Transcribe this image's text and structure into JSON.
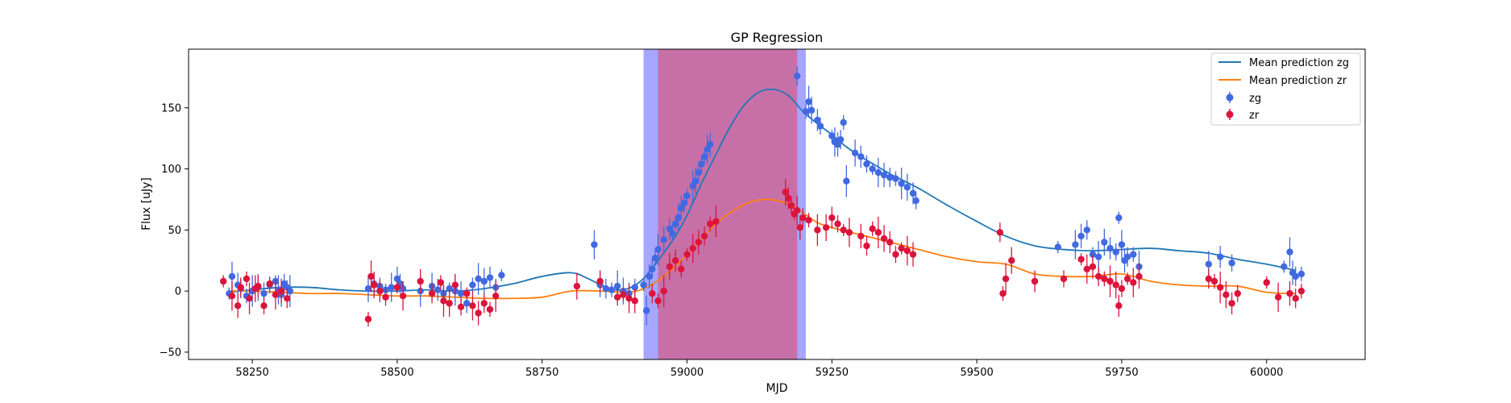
{
  "chart_data": {
    "type": "scatter",
    "title": "GP Regression",
    "xlabel": "MJD",
    "ylabel": "Flux [uJy]",
    "xlim": [
      58140,
      60170
    ],
    "ylim": [
      -56,
      198
    ],
    "xticks": [
      58250,
      58500,
      58750,
      59000,
      59250,
      59500,
      59750,
      60000
    ],
    "yticks": [
      -50,
      0,
      50,
      100,
      150
    ],
    "legend_position": "top-right",
    "shaded_regions": [
      {
        "x_start": 58925,
        "x_end": 59205,
        "color": "#8080ff"
      },
      {
        "x_start": 58950,
        "x_end": 59190,
        "color": "#cc6699"
      }
    ],
    "lines": [
      {
        "name": "Mean prediction zg",
        "color": "#1f77b4",
        "x": [
          58210,
          58250,
          58300,
          58350,
          58400,
          58450,
          58500,
          58550,
          58600,
          58650,
          58700,
          58750,
          58800,
          58830,
          58860,
          58890,
          58920,
          58950,
          58980,
          59000,
          59025,
          59050,
          59075,
          59100,
          59125,
          59150,
          59175,
          59200,
          59225,
          59250,
          59275,
          59300,
          59325,
          59350,
          59375,
          59400,
          59450,
          59500,
          59550,
          59600,
          59650,
          59700,
          59750,
          59800,
          59850,
          59900,
          59950,
          60000,
          60050
        ],
        "y": [
          -1,
          1,
          3,
          3,
          1,
          0,
          0,
          1,
          0,
          2,
          6,
          12,
          15,
          10,
          3,
          1,
          8,
          25,
          45,
          62,
          88,
          112,
          135,
          153,
          163,
          165,
          160,
          147,
          137,
          128,
          118,
          110,
          103,
          96,
          90,
          84,
          70,
          57,
          45,
          37,
          34,
          33,
          34,
          35,
          33,
          31,
          26,
          22,
          17
        ]
      },
      {
        "name": "Mean prediction zr",
        "color": "#ff7f0e",
        "x": [
          58210,
          58250,
          58300,
          58350,
          58400,
          58450,
          58500,
          58550,
          58600,
          58650,
          58700,
          58750,
          58800,
          58850,
          58900,
          58930,
          58960,
          58990,
          59020,
          59050,
          59080,
          59110,
          59140,
          59170,
          59200,
          59225,
          59250,
          59275,
          59300,
          59350,
          59400,
          59450,
          59500,
          59550,
          59600,
          59650,
          59700,
          59750,
          59800,
          59850,
          59900,
          59950,
          60000,
          60050
        ],
        "y": [
          0,
          0,
          -1,
          -2,
          -2,
          -3,
          -4,
          -4,
          -5,
          -6,
          -6,
          -5,
          0,
          0,
          -1,
          3,
          12,
          25,
          40,
          55,
          66,
          73,
          75,
          72,
          64,
          56,
          52,
          49,
          46,
          40,
          34,
          28,
          24,
          22,
          14,
          12,
          12,
          14,
          8,
          5,
          4,
          4,
          -1,
          -2
        ]
      }
    ],
    "series": [
      {
        "name": "zg",
        "color": "#4169e1",
        "points": [
          [
            58210,
            -2
          ],
          [
            58215,
            12
          ],
          [
            58225,
            5
          ],
          [
            58230,
            2
          ],
          [
            58240,
            -4
          ],
          [
            58250,
            0
          ],
          [
            58260,
            3
          ],
          [
            58270,
            -2
          ],
          [
            58280,
            5
          ],
          [
            58290,
            8
          ],
          [
            58295,
            1
          ],
          [
            58300,
            -3
          ],
          [
            58305,
            6
          ],
          [
            58310,
            3
          ],
          [
            58315,
            0
          ],
          [
            58450,
            2
          ],
          [
            58460,
            6
          ],
          [
            58470,
            4
          ],
          [
            58480,
            1
          ],
          [
            58490,
            3
          ],
          [
            58500,
            10
          ],
          [
            58505,
            6
          ],
          [
            58510,
            2
          ],
          [
            58540,
            0
          ],
          [
            58560,
            4
          ],
          [
            58570,
            1
          ],
          [
            58580,
            -2
          ],
          [
            58590,
            2
          ],
          [
            58600,
            0
          ],
          [
            58610,
            -2
          ],
          [
            58620,
            -10
          ],
          [
            58630,
            5
          ],
          [
            58640,
            10
          ],
          [
            58650,
            8
          ],
          [
            58660,
            11
          ],
          [
            58670,
            3
          ],
          [
            58680,
            13
          ],
          [
            58840,
            38
          ],
          [
            58850,
            5
          ],
          [
            58860,
            2
          ],
          [
            58870,
            1
          ],
          [
            58880,
            4
          ],
          [
            58890,
            0
          ],
          [
            58900,
            -2
          ],
          [
            58910,
            3
          ],
          [
            58925,
            5
          ],
          [
            58930,
            -16
          ],
          [
            58935,
            12
          ],
          [
            58940,
            18
          ],
          [
            58945,
            27
          ],
          [
            58950,
            34
          ],
          [
            58960,
            42
          ],
          [
            58970,
            51
          ],
          [
            58975,
            47
          ],
          [
            58980,
            55
          ],
          [
            58985,
            60
          ],
          [
            58990,
            68
          ],
          [
            58995,
            72
          ],
          [
            59000,
            78
          ],
          [
            59010,
            86
          ],
          [
            59015,
            90
          ],
          [
            59020,
            97
          ],
          [
            59025,
            104
          ],
          [
            59030,
            110
          ],
          [
            59035,
            116
          ],
          [
            59040,
            120
          ],
          [
            59190,
            176
          ],
          [
            59205,
            147
          ],
          [
            59210,
            155
          ],
          [
            59215,
            148
          ],
          [
            59225,
            140
          ],
          [
            59230,
            135
          ],
          [
            59250,
            127
          ],
          [
            59255,
            122
          ],
          [
            59260,
            120
          ],
          [
            59265,
            124
          ],
          [
            59270,
            138
          ],
          [
            59275,
            90
          ],
          [
            59290,
            113
          ],
          [
            59300,
            110
          ],
          [
            59310,
            104
          ],
          [
            59320,
            100
          ],
          [
            59330,
            97
          ],
          [
            59340,
            95
          ],
          [
            59350,
            93
          ],
          [
            59360,
            92
          ],
          [
            59370,
            88
          ],
          [
            59380,
            85
          ],
          [
            59390,
            80
          ],
          [
            59395,
            74
          ],
          [
            59640,
            36
          ],
          [
            59670,
            38
          ],
          [
            59680,
            45
          ],
          [
            59690,
            50
          ],
          [
            59700,
            30
          ],
          [
            59710,
            28
          ],
          [
            59720,
            40
          ],
          [
            59730,
            35
          ],
          [
            59740,
            32
          ],
          [
            59745,
            60
          ],
          [
            59750,
            38
          ],
          [
            59755,
            25
          ],
          [
            59760,
            28
          ],
          [
            59770,
            30
          ],
          [
            59780,
            20
          ],
          [
            59900,
            22
          ],
          [
            59920,
            28
          ],
          [
            59940,
            23
          ],
          [
            60030,
            20
          ],
          [
            60040,
            32
          ],
          [
            60045,
            15
          ],
          [
            60050,
            12
          ],
          [
            60060,
            14
          ]
        ]
      },
      {
        "name": "zr",
        "color": "#dc143c",
        "points": [
          [
            58200,
            8
          ],
          [
            58215,
            -4
          ],
          [
            58225,
            -12
          ],
          [
            58230,
            3
          ],
          [
            58240,
            10
          ],
          [
            58245,
            -6
          ],
          [
            58255,
            2
          ],
          [
            58260,
            4
          ],
          [
            58270,
            -12
          ],
          [
            58280,
            6
          ],
          [
            58290,
            -3
          ],
          [
            58300,
            0
          ],
          [
            58310,
            -6
          ],
          [
            58450,
            -23
          ],
          [
            58455,
            12
          ],
          [
            58460,
            5
          ],
          [
            58470,
            0
          ],
          [
            58480,
            -5
          ],
          [
            58500,
            3
          ],
          [
            58510,
            -4
          ],
          [
            58540,
            8
          ],
          [
            58560,
            -2
          ],
          [
            58575,
            7
          ],
          [
            58580,
            -8
          ],
          [
            58590,
            -10
          ],
          [
            58600,
            5
          ],
          [
            58610,
            -13
          ],
          [
            58620,
            -2
          ],
          [
            58630,
            -12
          ],
          [
            58640,
            -18
          ],
          [
            58650,
            -10
          ],
          [
            58660,
            -15
          ],
          [
            58670,
            -4
          ],
          [
            58810,
            4
          ],
          [
            58850,
            8
          ],
          [
            58880,
            -5
          ],
          [
            58890,
            -3
          ],
          [
            58900,
            -6
          ],
          [
            58910,
            -8
          ],
          [
            58940,
            -2
          ],
          [
            58950,
            -8
          ],
          [
            58960,
            0
          ],
          [
            58970,
            20
          ],
          [
            58980,
            25
          ],
          [
            58990,
            18
          ],
          [
            59000,
            30
          ],
          [
            59010,
            35
          ],
          [
            59020,
            40
          ],
          [
            59030,
            45
          ],
          [
            59040,
            55
          ],
          [
            59050,
            57
          ],
          [
            59170,
            81
          ],
          [
            59175,
            76
          ],
          [
            59180,
            70
          ],
          [
            59185,
            63
          ],
          [
            59190,
            66
          ],
          [
            59195,
            52
          ],
          [
            59200,
            60
          ],
          [
            59210,
            58
          ],
          [
            59225,
            50
          ],
          [
            59240,
            52
          ],
          [
            59250,
            60
          ],
          [
            59260,
            55
          ],
          [
            59270,
            50
          ],
          [
            59280,
            48
          ],
          [
            59300,
            45
          ],
          [
            59310,
            37
          ],
          [
            59320,
            51
          ],
          [
            59330,
            48
          ],
          [
            59340,
            43
          ],
          [
            59350,
            40
          ],
          [
            59360,
            30
          ],
          [
            59370,
            35
          ],
          [
            59380,
            33
          ],
          [
            59390,
            30
          ],
          [
            59540,
            48
          ],
          [
            59545,
            -2
          ],
          [
            59550,
            10
          ],
          [
            59560,
            25
          ],
          [
            59600,
            8
          ],
          [
            59650,
            10
          ],
          [
            59680,
            26
          ],
          [
            59690,
            18
          ],
          [
            59700,
            20
          ],
          [
            59710,
            12
          ],
          [
            59720,
            10
          ],
          [
            59730,
            8
          ],
          [
            59740,
            5
          ],
          [
            59745,
            -12
          ],
          [
            59750,
            2
          ],
          [
            59760,
            10
          ],
          [
            59770,
            7
          ],
          [
            59780,
            12
          ],
          [
            59900,
            10
          ],
          [
            59910,
            8
          ],
          [
            59920,
            3
          ],
          [
            59930,
            -3
          ],
          [
            59940,
            -10
          ],
          [
            59950,
            -2
          ],
          [
            60000,
            7
          ],
          [
            60020,
            -5
          ],
          [
            60040,
            -2
          ],
          [
            60050,
            -6
          ],
          [
            60060,
            0
          ]
        ]
      }
    ]
  }
}
